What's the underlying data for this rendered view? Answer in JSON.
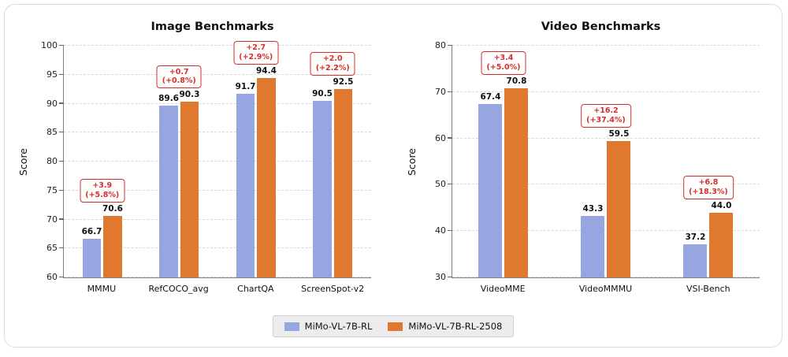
{
  "legend": {
    "items": [
      {
        "label": "MiMo-VL-7B-RL",
        "color": "#97a5e0"
      },
      {
        "label": "MiMo-VL-7B-RL-2508",
        "color": "#e0792f"
      }
    ]
  },
  "chart_data": [
    {
      "type": "bar",
      "title": "Image Benchmarks",
      "xlabel": "",
      "ylabel": "Score",
      "ylim": [
        60,
        100
      ],
      "ytick_step": 5,
      "grid": "horizontal-dashed",
      "legend_position": "bottom-center-shared",
      "categories": [
        "MMMU",
        "RefCOCO_avg",
        "ChartQA",
        "ScreenSpot-v2"
      ],
      "series": [
        {
          "name": "MiMo-VL-7B-RL",
          "color": "#97a5e0",
          "values": [
            66.7,
            89.6,
            91.7,
            90.5
          ]
        },
        {
          "name": "MiMo-VL-7B-RL-2508",
          "color": "#e0792f",
          "values": [
            70.6,
            90.3,
            94.4,
            92.5
          ]
        }
      ],
      "annotations": [
        {
          "delta": "+3.9",
          "pct": "(+5.8%)"
        },
        {
          "delta": "+0.7",
          "pct": "(+0.8%)"
        },
        {
          "delta": "+2.7",
          "pct": "(+2.9%)"
        },
        {
          "delta": "+2.0",
          "pct": "(+2.2%)"
        }
      ]
    },
    {
      "type": "bar",
      "title": "Video Benchmarks",
      "xlabel": "",
      "ylabel": "Score",
      "ylim": [
        30,
        80
      ],
      "ytick_step": 10,
      "grid": "horizontal-dashed",
      "legend_position": "bottom-center-shared",
      "categories": [
        "VideoMME",
        "VideoMMMU",
        "VSI-Bench"
      ],
      "series": [
        {
          "name": "MiMo-VL-7B-RL",
          "color": "#97a5e0",
          "values": [
            67.4,
            43.3,
            37.2
          ]
        },
        {
          "name": "MiMo-VL-7B-RL-2508",
          "color": "#e0792f",
          "values": [
            70.8,
            59.5,
            44.0
          ]
        }
      ],
      "annotations": [
        {
          "delta": "+3.4",
          "pct": "(+5.0%)"
        },
        {
          "delta": "+16.2",
          "pct": "(+37.4%)"
        },
        {
          "delta": "+6.8",
          "pct": "(+18.3%)"
        }
      ]
    }
  ]
}
